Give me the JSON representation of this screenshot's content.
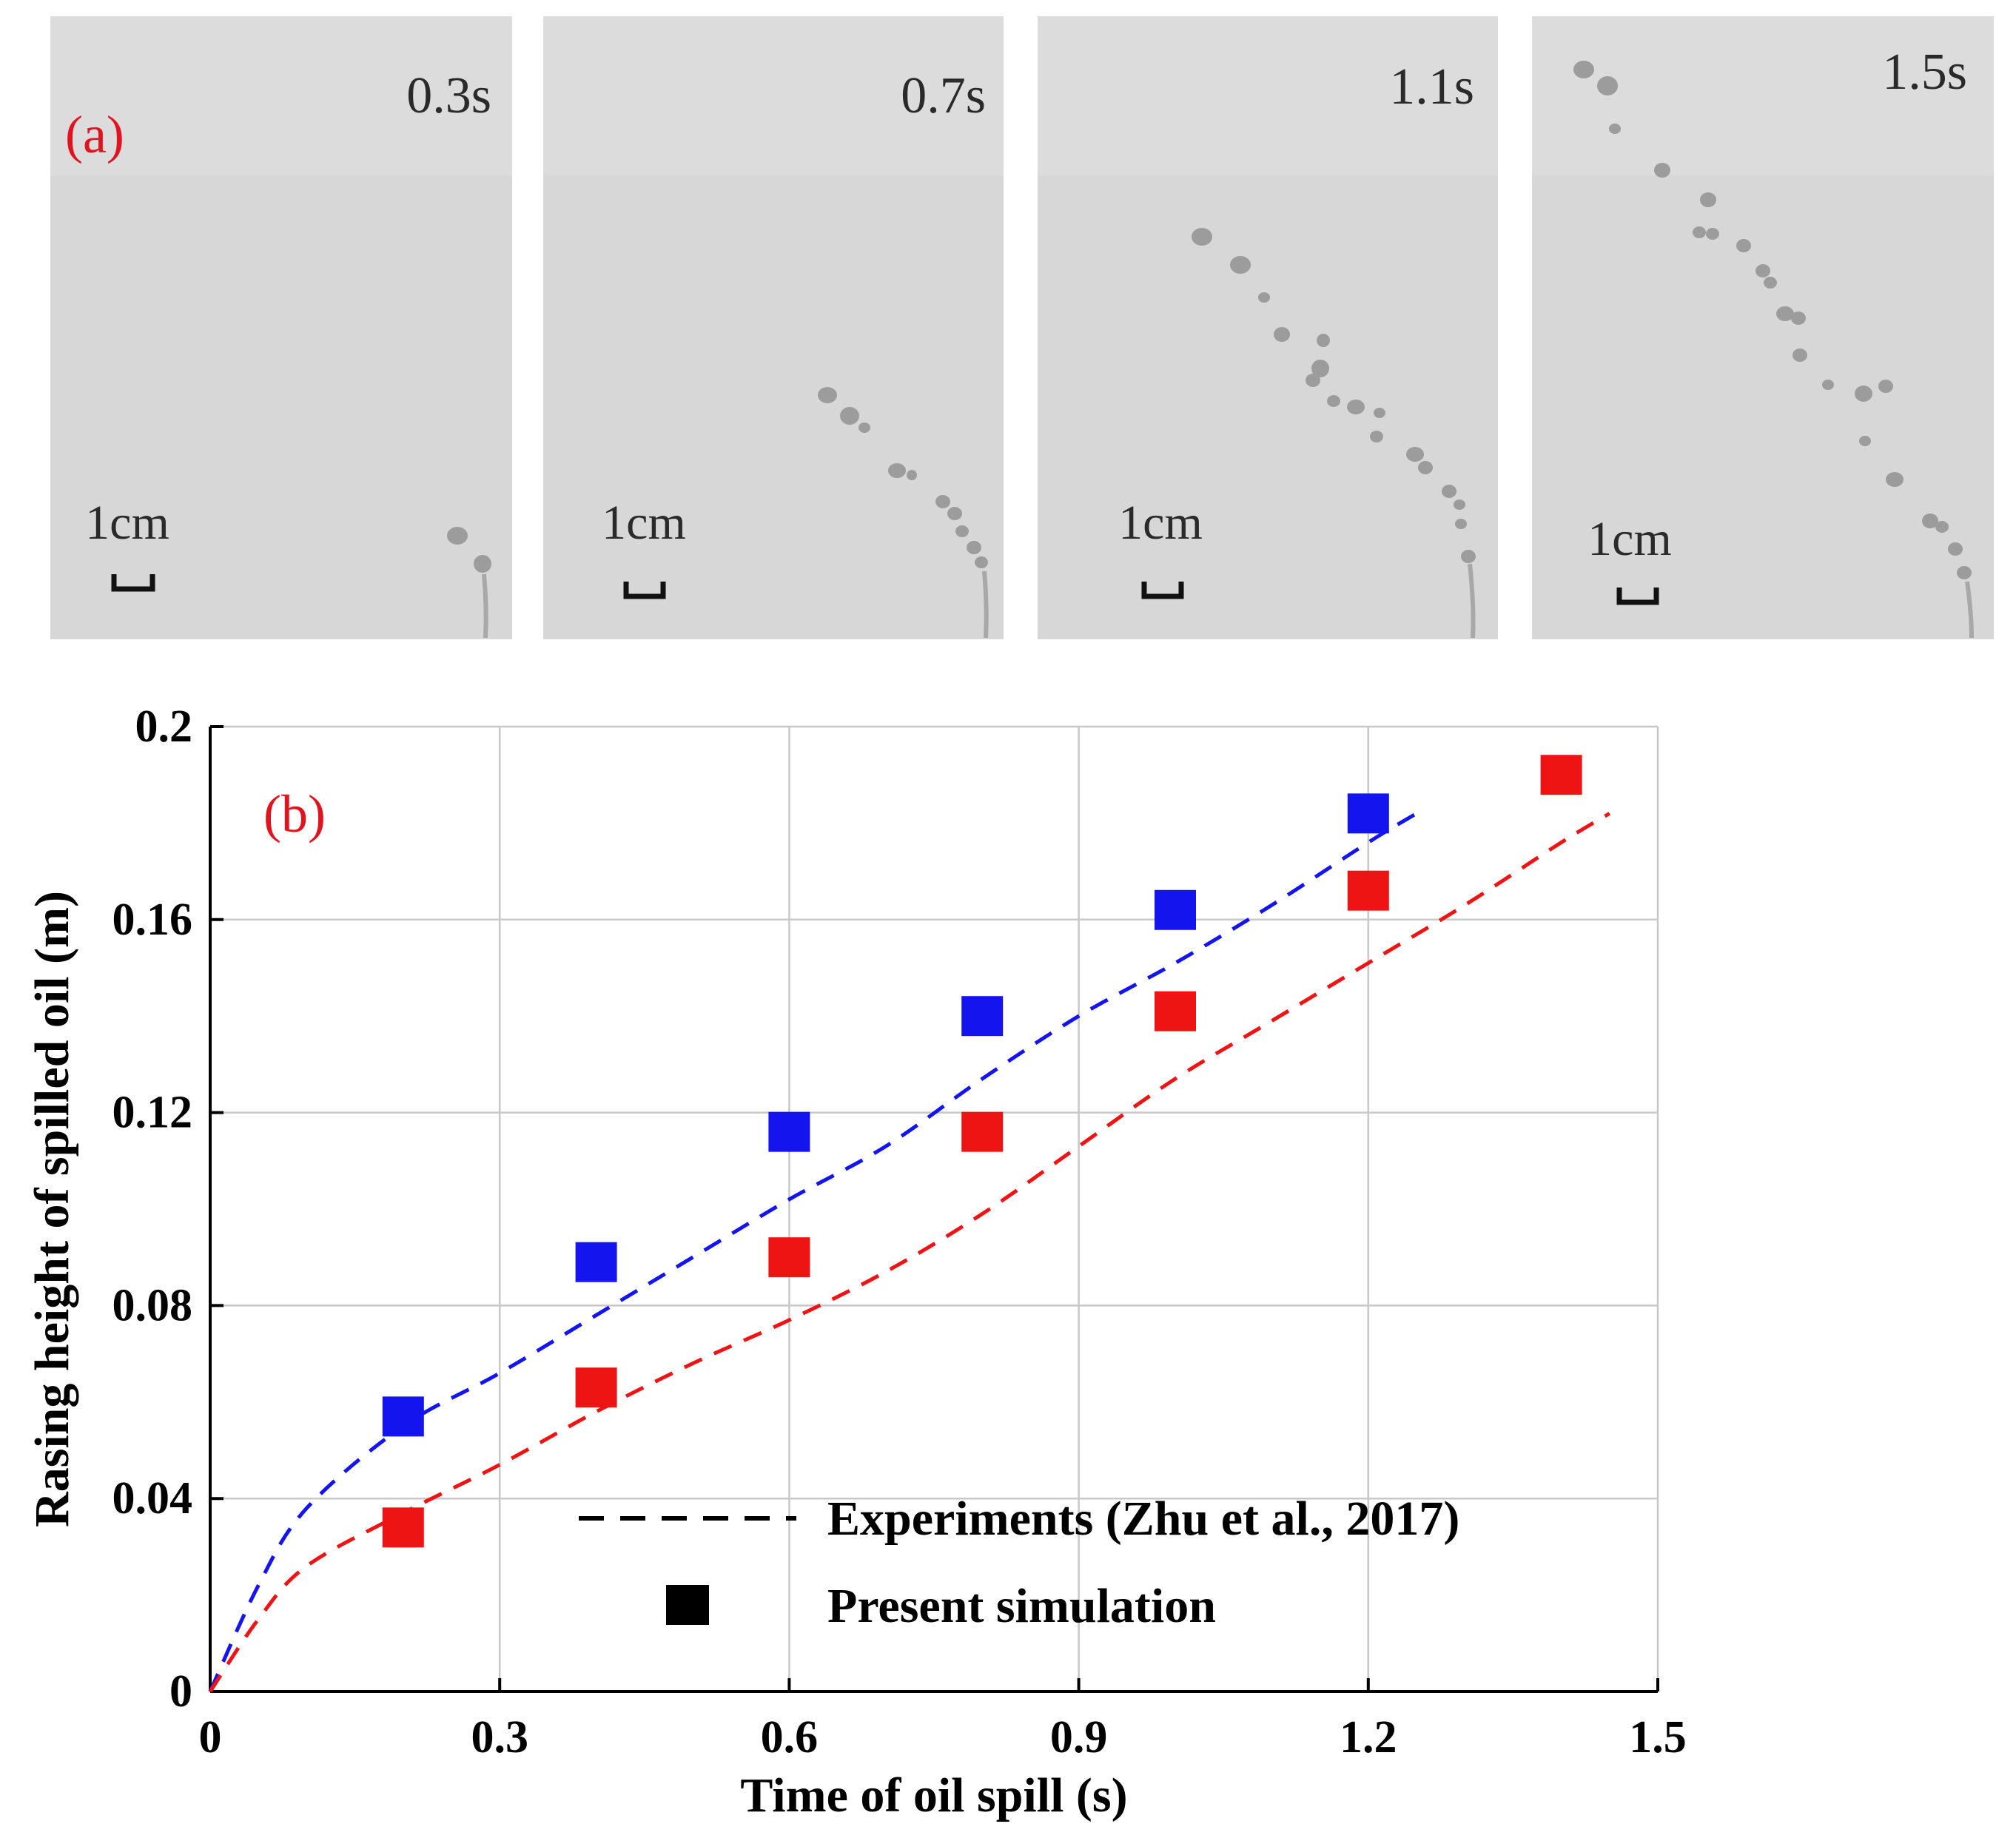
{
  "panel_a": {
    "label": "(a)",
    "frames": [
      {
        "time": "0.3s",
        "scale": "1cm"
      },
      {
        "time": "0.7s",
        "scale": "1cm"
      },
      {
        "time": "1.1s",
        "scale": "1cm"
      },
      {
        "time": "1.5s",
        "scale": "1cm"
      }
    ]
  },
  "chart_data": {
    "type": "scatter",
    "panel_label": "(b)",
    "xlabel": "Time of oil spill (s)",
    "ylabel": "Rasing height of spilled oil (m)",
    "xlim": [
      0,
      1.5
    ],
    "ylim": [
      0,
      0.2
    ],
    "xticks": [
      0,
      0.3,
      0.6,
      0.9,
      1.2,
      1.5
    ],
    "xtick_labels": [
      "0",
      "0.3",
      "0.6",
      "0.9",
      "1.2",
      "1.5"
    ],
    "yticks": [
      0,
      0.04,
      0.08,
      0.12,
      0.16,
      0.2
    ],
    "ytick_labels": [
      "0",
      "0.04",
      "0.08",
      "0.12",
      "0.16",
      "0.2"
    ],
    "grid": true,
    "legend": {
      "position": "bottom-right",
      "entries": [
        {
          "label": "Experiments (Zhu et al., 2017)",
          "style": "dashed-line"
        },
        {
          "label": "Present simulation",
          "style": "square-marker"
        }
      ]
    },
    "series": [
      {
        "name": "simulation-blue",
        "kind": "markers",
        "color": "#1414ee",
        "x": [
          0.2,
          0.4,
          0.6,
          0.8,
          1.0,
          1.2
        ],
        "y": [
          0.057,
          0.089,
          0.116,
          0.14,
          0.162,
          0.182
        ]
      },
      {
        "name": "simulation-red",
        "kind": "markers",
        "color": "#ee1414",
        "x": [
          0.2,
          0.4,
          0.6,
          0.8,
          1.0,
          1.2,
          1.4
        ],
        "y": [
          0.034,
          0.063,
          0.09,
          0.116,
          0.141,
          0.166,
          0.19
        ]
      },
      {
        "name": "experiment-blue",
        "kind": "dashed",
        "color": "#1414ee",
        "x": [
          0,
          0.05,
          0.1,
          0.2,
          0.3,
          0.4,
          0.5,
          0.6,
          0.7,
          0.8,
          0.9,
          1.0,
          1.1,
          1.2,
          1.25
        ],
        "y": [
          0,
          0.022,
          0.038,
          0.055,
          0.066,
          0.078,
          0.09,
          0.102,
          0.113,
          0.127,
          0.14,
          0.151,
          0.163,
          0.176,
          0.182
        ]
      },
      {
        "name": "experiment-red",
        "kind": "dashed",
        "color": "#ee1414",
        "x": [
          0,
          0.05,
          0.1,
          0.2,
          0.3,
          0.4,
          0.5,
          0.6,
          0.7,
          0.8,
          0.9,
          1.0,
          1.1,
          1.2,
          1.3,
          1.4,
          1.45
        ],
        "y": [
          0,
          0.015,
          0.026,
          0.037,
          0.047,
          0.058,
          0.068,
          0.077,
          0.087,
          0.099,
          0.113,
          0.127,
          0.139,
          0.151,
          0.163,
          0.176,
          0.182
        ]
      }
    ]
  }
}
